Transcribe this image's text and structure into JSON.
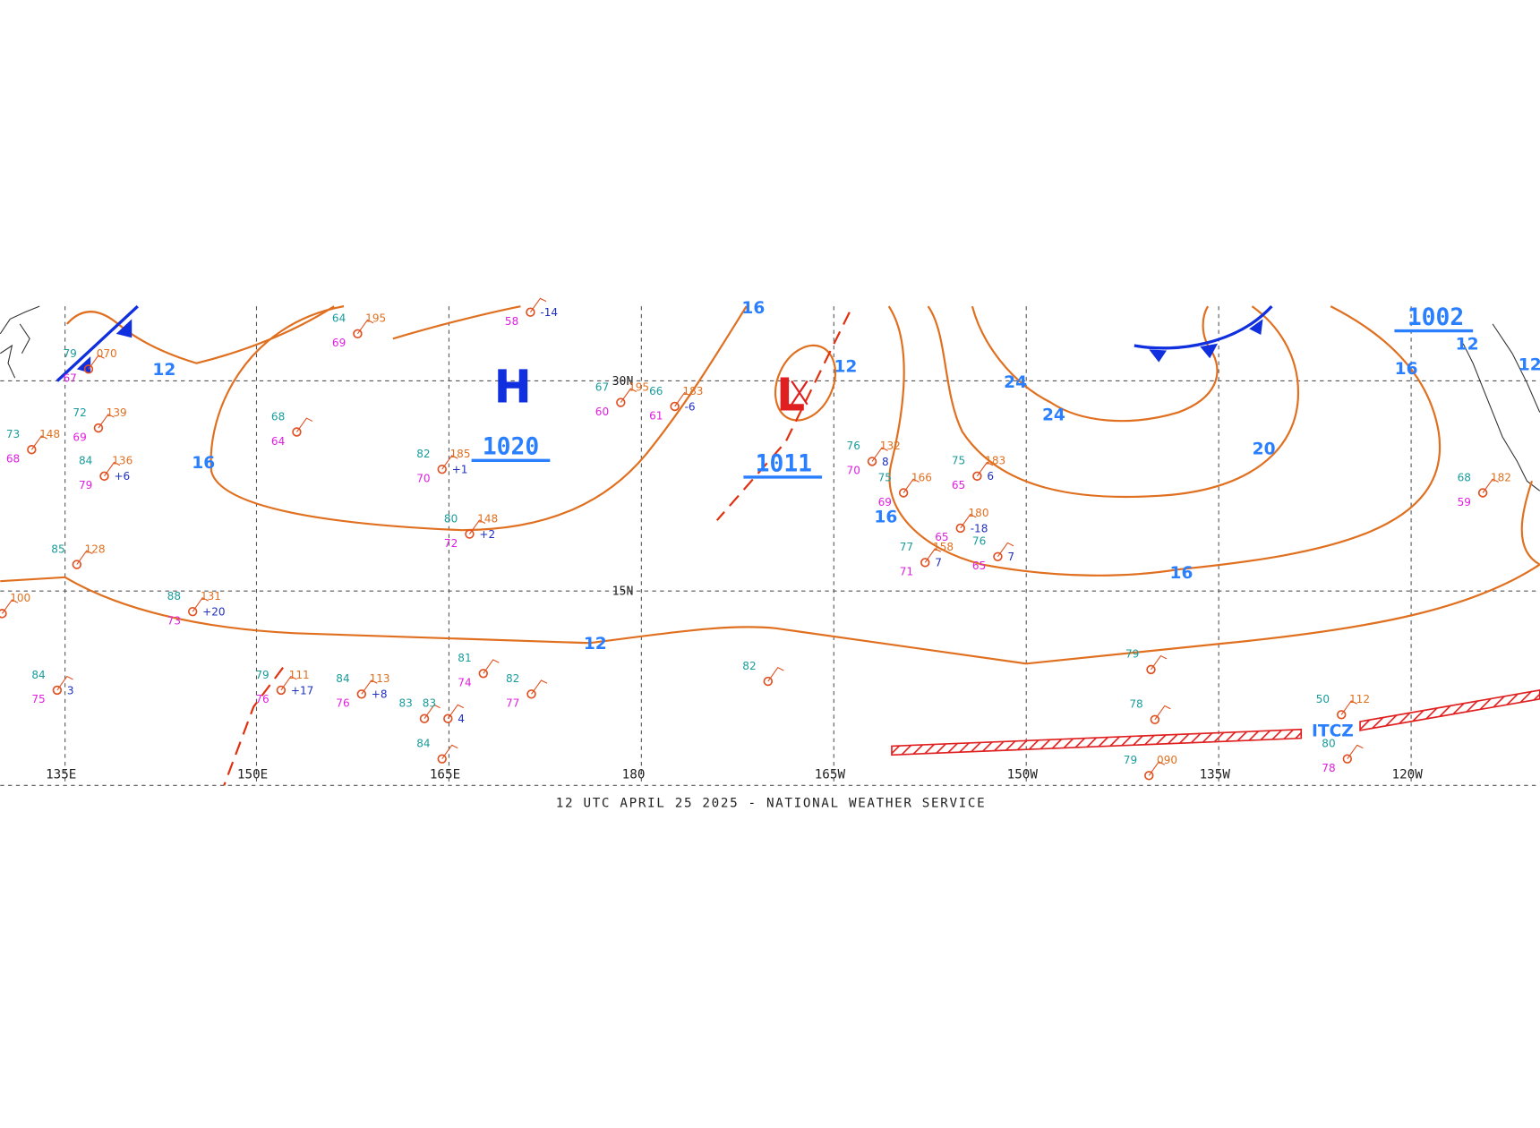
{
  "map": {
    "latitude_labels": [
      "30N",
      "15N"
    ],
    "longitude_labels": [
      "135E",
      "150E",
      "165E",
      "180",
      "165W",
      "150W",
      "135W",
      "120W"
    ],
    "pressure_centers": [
      {
        "symbol": "H",
        "pressure": "1020"
      },
      {
        "symbol": "L",
        "pressure": "1011"
      },
      {
        "pressure": "1002"
      }
    ],
    "isobar_labels": [
      "12",
      "16",
      "12",
      "12",
      "16",
      "24",
      "24",
      "20",
      "16",
      "16",
      "12",
      "12",
      "16"
    ],
    "feature_labels": [
      "ITCZ"
    ],
    "station_plots": [
      {
        "temp": "64",
        "pressure": "195",
        "dewpoint": "69"
      },
      {
        "temp": "67",
        "pressure": "195",
        "dewpoint": "60"
      },
      {
        "temp": "66",
        "pressure": "183",
        "dewpoint": "61",
        "tendency": "-6"
      },
      {
        "temp": "82",
        "pressure": "185",
        "dewpoint": "70",
        "tendency": "+1"
      },
      {
        "temp": "80",
        "pressure": "148",
        "dewpoint": "72",
        "tendency": "+2"
      },
      {
        "temp": "72",
        "pressure": "139",
        "dewpoint": "69"
      },
      {
        "temp": "73",
        "pressure": "148",
        "dewpoint": "68"
      },
      {
        "temp": "84",
        "pressure": "136",
        "dewpoint": "79",
        "tendency": "+6"
      },
      {
        "temp": "68",
        "dewpoint": "64"
      },
      {
        "temp": "85",
        "pressure": "128"
      },
      {
        "temp": "76",
        "pressure": "132",
        "dewpoint": "70",
        "tendency": "8"
      },
      {
        "temp": "75",
        "pressure": "166",
        "dewpoint": "69"
      },
      {
        "temp": "75",
        "pressure": "183",
        "dewpoint": "65",
        "tendency": "6"
      },
      {
        "pressure": "180",
        "dewpoint": "65",
        "tendency": "-18"
      },
      {
        "temp": "77",
        "pressure": "158",
        "dewpoint": "71",
        "tendency": "7"
      },
      {
        "temp": "76",
        "dewpoint": "65",
        "tendency": "7"
      },
      {
        "temp": "68",
        "pressure": "182",
        "dewpoint": "59"
      },
      {
        "dewpoint": "58",
        "tendency": "-14"
      },
      {
        "temp": "79",
        "pressure": "111",
        "dewpoint": "76",
        "tendency": "+17"
      },
      {
        "temp": "84",
        "pressure": "113",
        "dewpoint": "76",
        "tendency": "+8"
      },
      {
        "temp": "81",
        "dewpoint": "74"
      },
      {
        "temp": "82",
        "dewpoint": "77"
      },
      {
        "temp": "82"
      },
      {
        "temp": "79"
      },
      {
        "temp": "78"
      },
      {
        "temp": "80",
        "dewpoint": "78"
      },
      {
        "temp": "50",
        "pressure": "112"
      },
      {
        "temp": "84",
        "dewpoint": "75",
        "tendency": "3"
      },
      {
        "temp": "88",
        "pressure": "131",
        "dewpoint": "73",
        "tendency": "+20"
      },
      {
        "pressure": "100"
      },
      {
        "temp": "83"
      },
      {
        "temp": "83",
        "tendency": "4"
      },
      {
        "temp": "84"
      },
      {
        "temp": "79",
        "pressure": "070",
        "dewpoint": "67"
      },
      {
        "temp": "79",
        "pressure": "090"
      }
    ]
  },
  "footer": {
    "caption": "12 UTC APRIL 25 2025 - NATIONAL WEATHER SERVICE"
  }
}
